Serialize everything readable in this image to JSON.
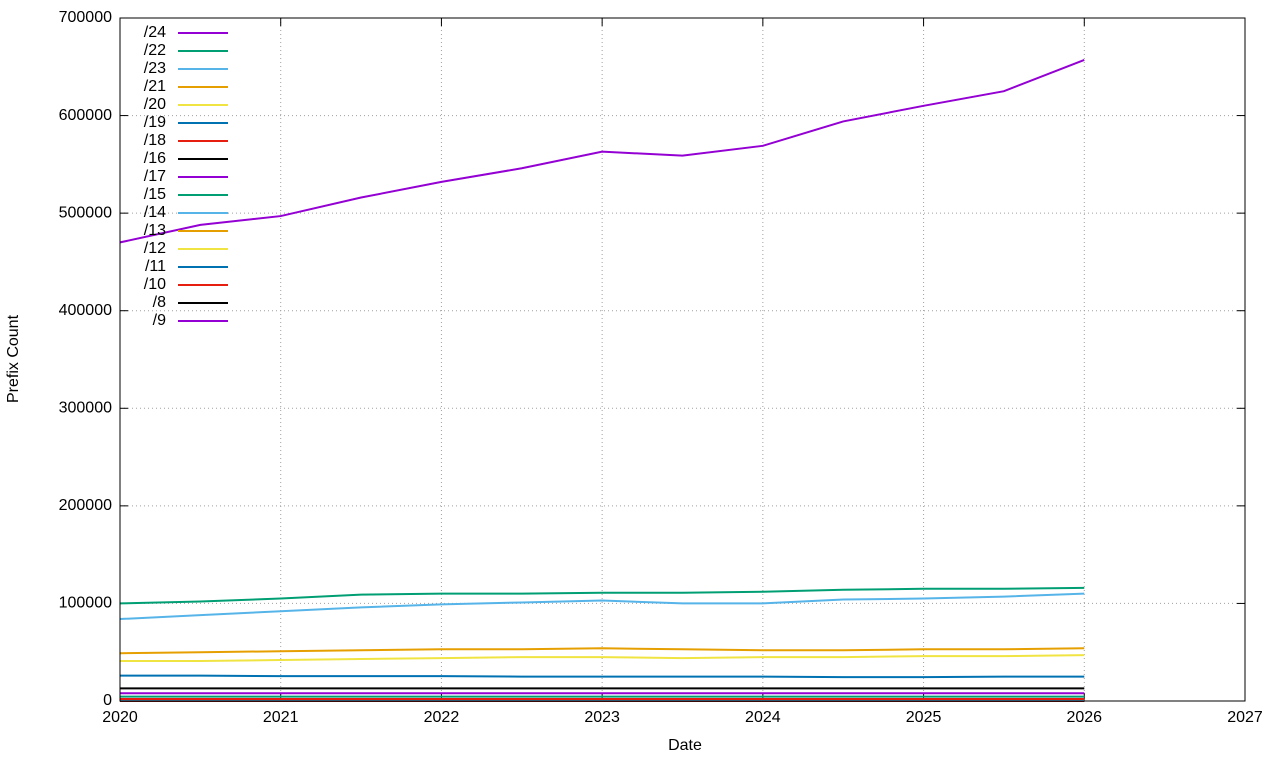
{
  "chart_data": {
    "type": "line",
    "xlabel": "Date",
    "ylabel": "Prefix Count",
    "x": [
      2020,
      2020.5,
      2021,
      2021.5,
      2022,
      2022.5,
      2023,
      2023.5,
      2024,
      2024.5,
      2025,
      2025.5,
      2026
    ],
    "xlim": [
      2020,
      2027
    ],
    "xticks": [
      2020,
      2021,
      2022,
      2023,
      2024,
      2025,
      2026,
      2027
    ],
    "ylim": [
      0,
      700000
    ],
    "yticks": [
      0,
      100000,
      200000,
      300000,
      400000,
      500000,
      600000,
      700000
    ],
    "grid": true,
    "legend": "upper-left",
    "series": [
      {
        "name": "/24",
        "color": "#9400d3",
        "values": [
          470000,
          488000,
          497000,
          516000,
          532000,
          546000,
          563000,
          559000,
          569000,
          594000,
          610000,
          625000,
          657000
        ]
      },
      {
        "name": "/22",
        "color": "#009e73",
        "values": [
          100000,
          102000,
          105000,
          109000,
          110000,
          110000,
          111000,
          111000,
          112000,
          114000,
          115000,
          115000,
          116000
        ]
      },
      {
        "name": "/23",
        "color": "#56b4e9",
        "values": [
          84000,
          88000,
          92000,
          96000,
          99000,
          101000,
          103000,
          100000,
          100000,
          104000,
          105000,
          107000,
          110000
        ]
      },
      {
        "name": "/21",
        "color": "#e69f00",
        "values": [
          49000,
          50000,
          51000,
          52000,
          53000,
          53000,
          54000,
          53000,
          52000,
          52000,
          53000,
          53000,
          54000
        ]
      },
      {
        "name": "/20",
        "color": "#f0e442",
        "values": [
          41000,
          41000,
          42000,
          43000,
          44000,
          45000,
          45000,
          44000,
          45000,
          45000,
          46000,
          46000,
          47000
        ]
      },
      {
        "name": "/19",
        "color": "#0072b2",
        "values": [
          26000,
          26000,
          25500,
          25500,
          25500,
          25000,
          25000,
          25000,
          25000,
          24500,
          24500,
          25000,
          25000
        ]
      },
      {
        "name": "/18",
        "color": "#e51e10",
        "values": [
          2000,
          2000,
          2000,
          2000,
          2000,
          2000,
          2000,
          2000,
          2000,
          2000,
          2000,
          2000,
          2000
        ]
      },
      {
        "name": "/16",
        "color": "#000000",
        "values": [
          13000,
          13000,
          13000,
          13000,
          13000,
          13000,
          13000,
          13000,
          13000,
          13000,
          13000,
          13000,
          13000
        ]
      },
      {
        "name": "/17",
        "color": "#9400d3",
        "values": [
          8000,
          8000,
          8000,
          8000,
          8000,
          8000,
          8000,
          8000,
          8000,
          8000,
          8000,
          8000,
          8000
        ]
      },
      {
        "name": "/15",
        "color": "#009e73",
        "values": [
          4500,
          4500,
          4500,
          4500,
          4500,
          4500,
          4500,
          4500,
          4500,
          4500,
          4500,
          4500,
          4500
        ]
      },
      {
        "name": "/14",
        "color": "#56b4e9",
        "values": [
          1500,
          1500,
          1500,
          1500,
          1500,
          1500,
          1500,
          1500,
          1500,
          1500,
          1500,
          1500,
          1500
        ]
      },
      {
        "name": "/13",
        "color": "#e69f00",
        "values": [
          1000,
          1000,
          1000,
          1000,
          1000,
          1000,
          1000,
          1000,
          1000,
          1000,
          1000,
          1000,
          1000
        ]
      },
      {
        "name": "/12",
        "color": "#f0e442",
        "values": [
          700,
          700,
          700,
          700,
          700,
          700,
          700,
          700,
          700,
          700,
          700,
          700,
          700
        ]
      },
      {
        "name": "/11",
        "color": "#0072b2",
        "values": [
          500,
          500,
          500,
          500,
          500,
          500,
          500,
          500,
          500,
          500,
          500,
          500,
          500
        ]
      },
      {
        "name": "/10",
        "color": "#e51e10",
        "values": [
          300,
          300,
          300,
          300,
          300,
          300,
          300,
          300,
          300,
          300,
          300,
          300,
          300
        ]
      },
      {
        "name": "/8",
        "color": "#000000",
        "values": [
          15,
          15,
          15,
          15,
          15,
          15,
          15,
          15,
          15,
          15,
          15,
          15,
          15
        ]
      },
      {
        "name": "/9",
        "color": "#9400d3",
        "values": [
          12,
          12,
          12,
          12,
          12,
          12,
          12,
          12,
          12,
          12,
          12,
          12,
          12
        ]
      }
    ]
  }
}
